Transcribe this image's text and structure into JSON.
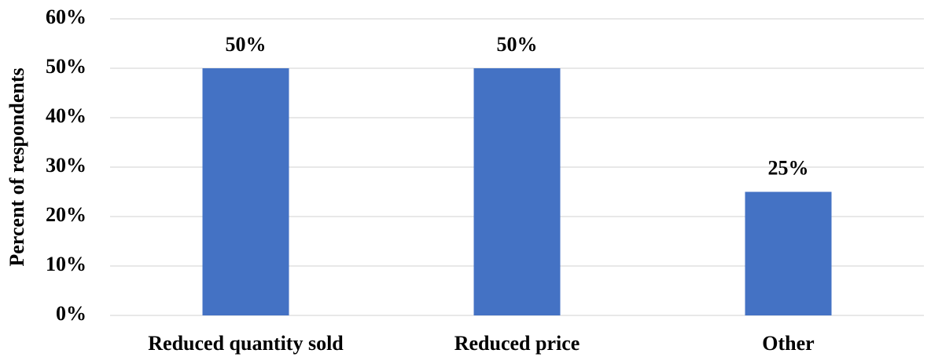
{
  "chart_data": {
    "type": "bar",
    "y_label": "Percent of respondents",
    "categories": [
      "Reduced quantity sold",
      "Reduced price",
      "Other"
    ],
    "values": [
      50,
      50,
      25
    ],
    "value_labels": [
      "50%",
      "50%",
      "25%"
    ],
    "color": "#4472c4",
    "ylim": [
      0,
      60
    ],
    "yticks": [
      {
        "value": 0,
        "label": "0%"
      },
      {
        "value": 10,
        "label": "10%"
      },
      {
        "value": 20,
        "label": "20%"
      },
      {
        "value": 30,
        "label": "30%"
      },
      {
        "value": 40,
        "label": "40%"
      },
      {
        "value": 50,
        "label": "50%"
      },
      {
        "value": 60,
        "label": "60%"
      }
    ],
    "grid": true
  }
}
